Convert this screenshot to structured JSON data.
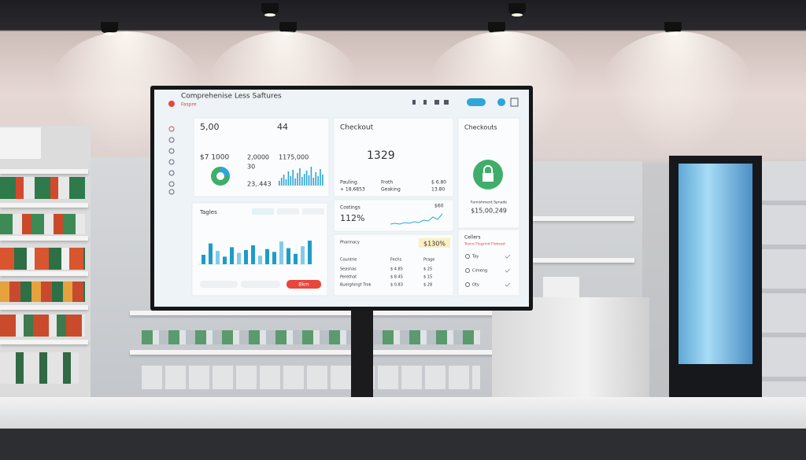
{
  "header": {
    "title": "Comprehenise Less Saftures",
    "subtitle": "Faspre"
  },
  "stats": {
    "value_1": "5,00",
    "value_2": "44",
    "value_3": "$7 1000",
    "value_4": "2,0000",
    "value_5": "30",
    "value_6": "23,.443",
    "value_7": "1175,000",
    "mini_bars": [
      6,
      10,
      14,
      8,
      18,
      12,
      20,
      9,
      16,
      22,
      11,
      15,
      19,
      13,
      24,
      10,
      17,
      12,
      21,
      14
    ]
  },
  "checkout": {
    "title": "Checkout",
    "total": "1329",
    "left": [
      "Pauling",
      "+ 18,6853"
    ],
    "middle": [
      "Froth",
      "Geaking"
    ],
    "right": [
      "$ 6.80",
      "13.80"
    ]
  },
  "checkouts": {
    "title": "Checkouts",
    "caption": "Farnishment Spnade",
    "amount": "$15,00,249"
  },
  "trend_chart": {
    "title": "Tagles",
    "button": "Bkm",
    "bars": [
      10,
      22,
      14,
      8,
      18,
      12,
      15,
      20,
      9,
      16,
      13,
      24,
      17,
      11,
      19,
      25
    ]
  },
  "costings": {
    "title": "Costings",
    "value": "112%",
    "note": "$60",
    "line": [
      3,
      4,
      3,
      5,
      4,
      6,
      5,
      8,
      7,
      12,
      9,
      16
    ]
  },
  "pharmacy": {
    "title": "Pharmacy",
    "badge": "$130%",
    "columns": [
      "Countrie",
      "Fechs",
      "Prage"
    ],
    "rows": [
      [
        "Seasnas",
        "$ 4.85",
        "$ 25"
      ],
      [
        "Perethat",
        "$ 8.45",
        "$ 15"
      ],
      [
        "Buerghingt Trok",
        "$ 0.83",
        "$ 28"
      ]
    ]
  },
  "cellers": {
    "title": "Cellers",
    "subtitle": "Tesiro Flegrind Flotnest",
    "items": [
      "Tay",
      "Cimeng",
      "Oty"
    ]
  }
}
